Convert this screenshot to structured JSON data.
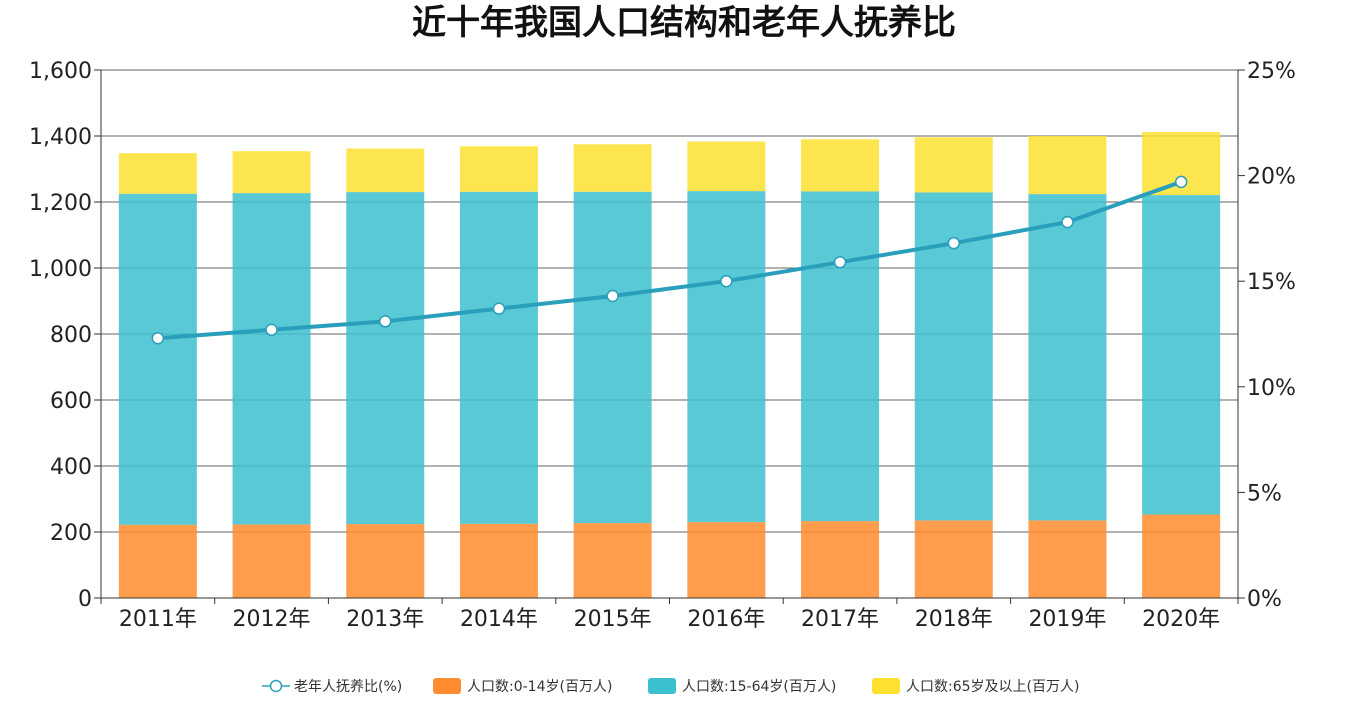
{
  "chart_data": {
    "type": "bar",
    "stacked": true,
    "title": "近十年我国人口结构和老年人抚养比",
    "categories": [
      "2011年",
      "2012年",
      "2013年",
      "2014年",
      "2015年",
      "2016年",
      "2017年",
      "2018年",
      "2019年",
      "2020年"
    ],
    "y_left": {
      "min": 0,
      "max": 1600,
      "ticks": [
        0,
        200,
        400,
        600,
        800,
        1000,
        1200,
        1400,
        1600
      ],
      "tick_labels": [
        "0",
        "200",
        "400",
        "600",
        "800",
        "1,000",
        "1,200",
        "1,400",
        "1,600"
      ]
    },
    "y_right": {
      "min": 0,
      "max": 25,
      "ticks": [
        0,
        5,
        10,
        15,
        20,
        25
      ],
      "tick_labels": [
        "0%",
        "5%",
        "10%",
        "15%",
        "20%",
        "25%"
      ]
    },
    "grid": true,
    "legend_position": "bottom",
    "series": [
      {
        "name": "人口数:0-14岁(百万人)",
        "type": "bar",
        "axis": "left",
        "color": "#ff8c2e",
        "values": [
          222,
          223,
          224,
          225,
          227,
          230,
          233,
          235,
          235,
          253
        ]
      },
      {
        "name": "人口数:15-64岁(百万人)",
        "type": "bar",
        "axis": "left",
        "color": "#3cbfcf",
        "values": [
          1003,
          1004,
          1006,
          1006,
          1004,
          1003,
          999,
          994,
          989,
          968
        ]
      },
      {
        "name": "人口数:65岁及以上(百万人)",
        "type": "bar",
        "axis": "left",
        "color": "#fde030",
        "values": [
          123,
          127,
          132,
          138,
          144,
          150,
          158,
          167,
          176,
          191
        ]
      },
      {
        "name": "老年人抚养比(%)",
        "type": "line",
        "axis": "right",
        "color": "#2a9fbc",
        "values": [
          12.3,
          12.7,
          13.1,
          13.7,
          14.3,
          15.0,
          15.9,
          16.8,
          17.8,
          19.7
        ]
      }
    ]
  }
}
